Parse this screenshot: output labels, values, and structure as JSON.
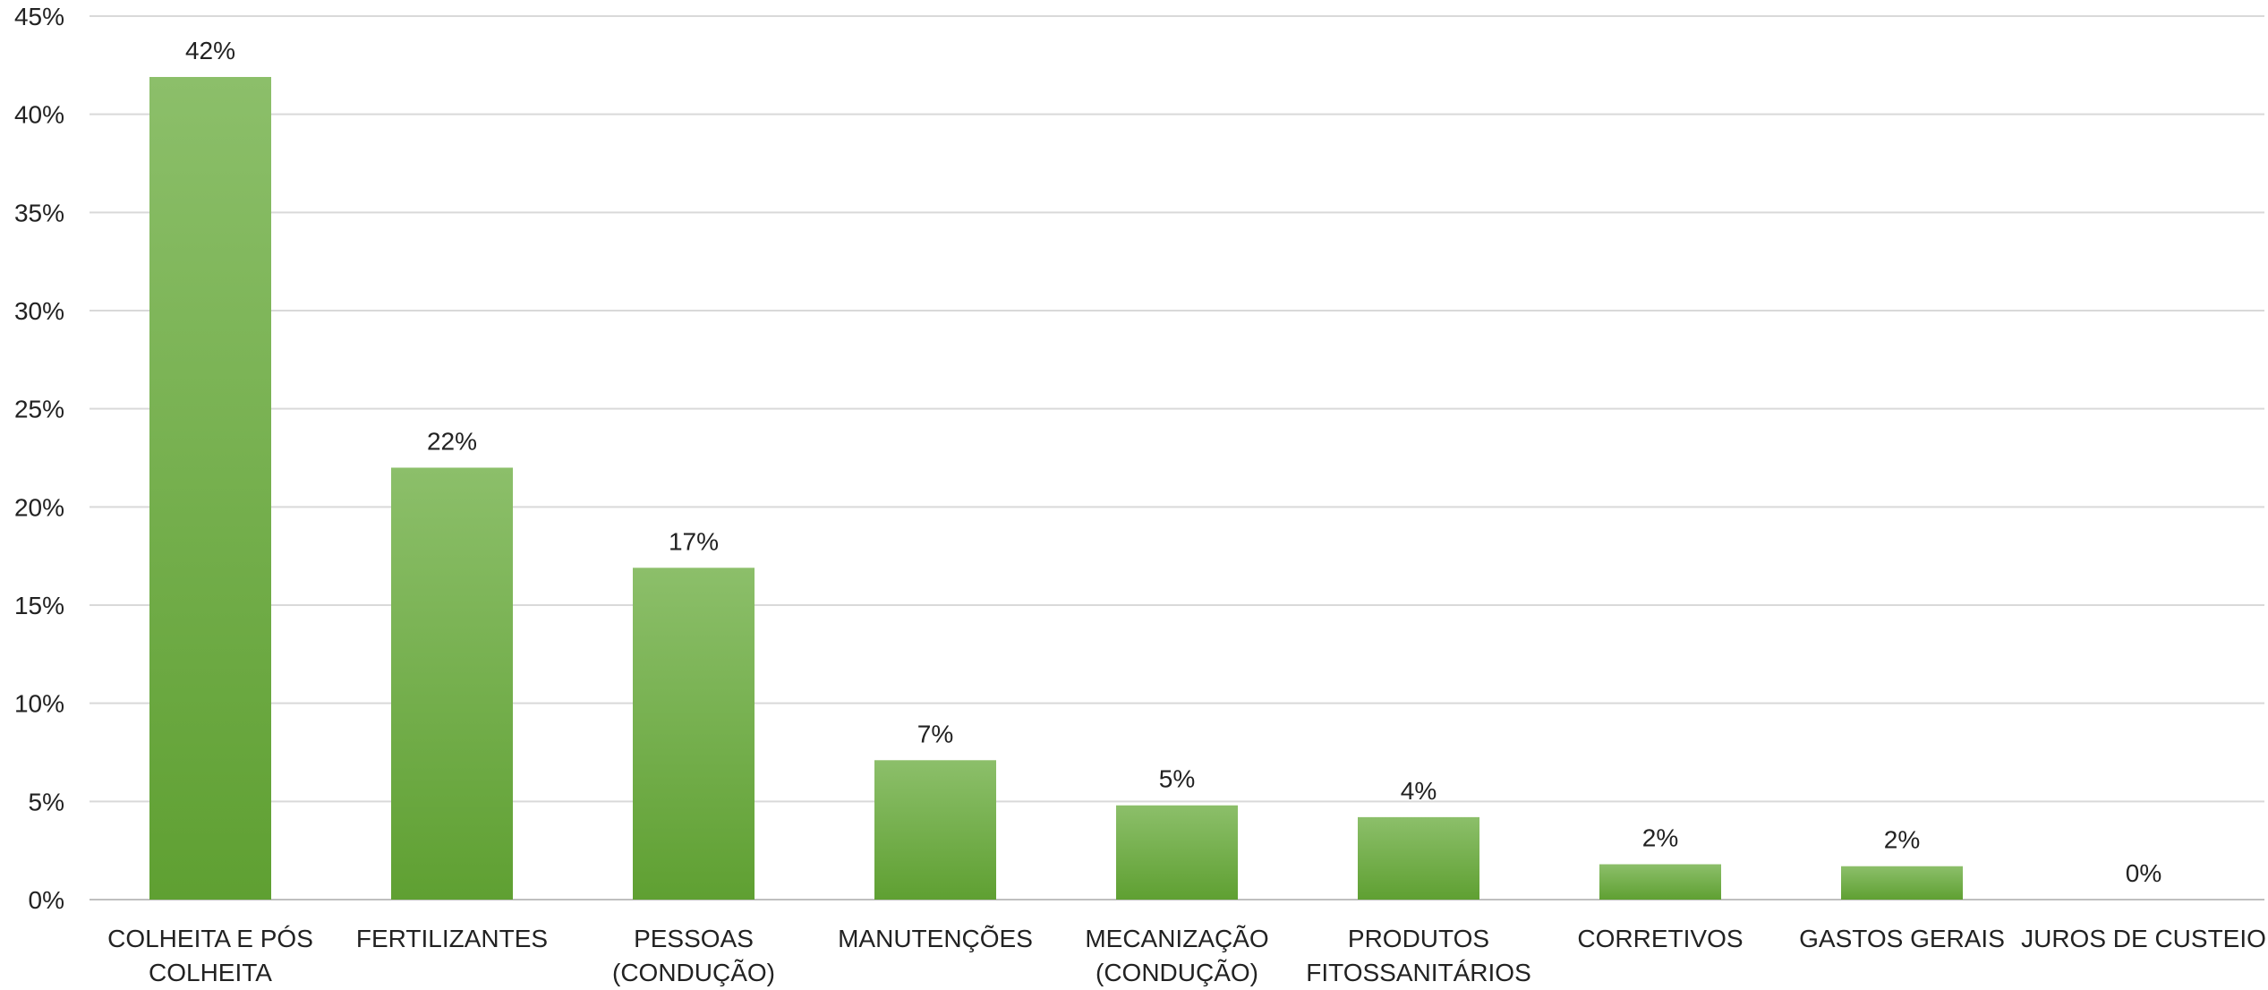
{
  "chart_data": {
    "type": "bar",
    "categories": [
      "COLHEITA E PÓS COLHEITA",
      "FERTILIZANTES",
      "PESSOAS (CONDUÇÃO)",
      "MANUTENÇÕES",
      "MECANIZAÇÃO (CONDUÇÃO)",
      "PRODUTOS FITOSSANITÁRIOS",
      "CORRETIVOS",
      "GASTOS GERAIS",
      "JUROS DE CUSTEIO"
    ],
    "category_lines": [
      [
        "COLHEITA E PÓS",
        "COLHEITA"
      ],
      [
        "FERTILIZANTES"
      ],
      [
        "PESSOAS",
        "(CONDUÇÃO)"
      ],
      [
        "MANUTENÇÕES"
      ],
      [
        "MECANIZAÇÃO",
        "(CONDUÇÃO)"
      ],
      [
        "PRODUTOS",
        "FITOSSANITÁRIOS"
      ],
      [
        "CORRETIVOS"
      ],
      [
        "GASTOS GERAIS"
      ],
      [
        "JUROS DE CUSTEIO"
      ]
    ],
    "values": [
      0.419,
      0.22,
      0.169,
      0.071,
      0.048,
      0.042,
      0.018,
      0.017,
      0.0
    ],
    "data_labels": [
      "42%",
      "22%",
      "17%",
      "7%",
      "5%",
      "4%",
      "2%",
      "2%",
      "0%"
    ],
    "ylim": [
      0,
      0.45
    ],
    "yticks": [
      0,
      0.05,
      0.1,
      0.15,
      0.2,
      0.25,
      0.3,
      0.35,
      0.4,
      0.45
    ],
    "ytick_labels": [
      "0%",
      "5%",
      "10%",
      "15%",
      "20%",
      "25%",
      "30%",
      "35%",
      "40%",
      "45%"
    ],
    "title": "",
    "xlabel": "",
    "ylabel": "",
    "grid": true,
    "legend": "none",
    "bar_color_top": "#8cbf6a",
    "bar_color_bottom": "#5fa032"
  }
}
